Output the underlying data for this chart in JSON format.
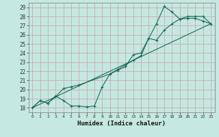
{
  "xlabel": "Humidex (Indice chaleur)",
  "bg_color": "#c5e8e0",
  "line_color": "#1a6b5a",
  "grid_color": "#d8ebe4",
  "xlim": [
    -0.5,
    23.5
  ],
  "ylim": [
    17.5,
    29.5
  ],
  "xticks": [
    0,
    1,
    2,
    3,
    4,
    5,
    6,
    7,
    8,
    9,
    10,
    11,
    12,
    13,
    14,
    15,
    16,
    17,
    18,
    19,
    20,
    21,
    22,
    23
  ],
  "yticks": [
    18,
    19,
    20,
    21,
    22,
    23,
    24,
    25,
    26,
    27,
    28,
    29
  ],
  "line1_x": [
    0,
    1,
    2,
    3,
    4,
    5,
    6,
    7,
    8,
    9,
    10,
    11,
    12,
    13,
    14,
    15,
    16,
    17,
    18,
    19,
    20,
    21,
    22,
    23
  ],
  "line1_y": [
    18.0,
    18.8,
    18.5,
    19.3,
    18.8,
    18.2,
    18.2,
    18.1,
    18.2,
    20.3,
    21.7,
    22.1,
    22.5,
    23.8,
    24.0,
    25.6,
    27.2,
    29.1,
    28.5,
    27.7,
    28.0,
    28.0,
    28.0,
    27.2
  ],
  "line2_x": [
    0,
    1,
    2,
    3,
    4,
    5,
    6,
    10,
    11,
    12,
    13,
    14,
    15,
    16,
    17,
    18,
    19,
    20,
    21,
    22,
    23
  ],
  "line2_y": [
    18.0,
    18.8,
    18.5,
    19.2,
    20.1,
    20.3,
    20.5,
    21.7,
    22.2,
    22.7,
    23.2,
    23.7,
    25.6,
    25.4,
    26.5,
    27.2,
    27.7,
    27.8,
    27.8,
    27.5,
    27.2
  ],
  "line3_x": [
    0,
    23
  ],
  "line3_y": [
    18.0,
    27.2
  ]
}
